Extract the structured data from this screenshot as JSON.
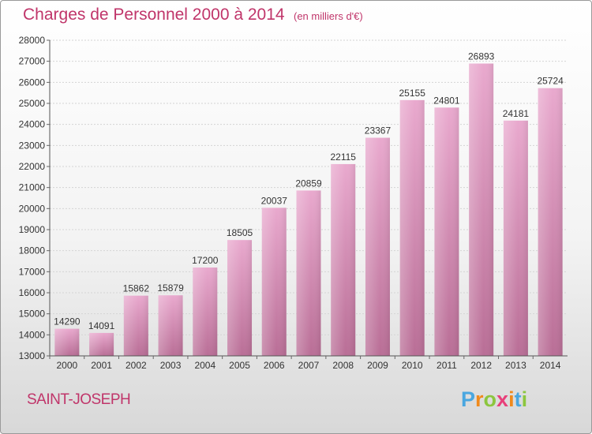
{
  "chart_data": {
    "type": "bar",
    "title": "Charges de Personnel 2000 à 2014",
    "subtitle": "(en milliers d'€)",
    "categories": [
      "2000",
      "2001",
      "2002",
      "2003",
      "2004",
      "2005",
      "2006",
      "2007",
      "2008",
      "2009",
      "2010",
      "2011",
      "2012",
      "2013",
      "2014"
    ],
    "values": [
      14290,
      14091,
      15862,
      15879,
      17200,
      18505,
      20037,
      20859,
      22115,
      23367,
      25155,
      24801,
      26893,
      24181,
      25724
    ],
    "ylim": [
      13000,
      28000
    ],
    "yticks": [
      13000,
      14000,
      15000,
      16000,
      17000,
      18000,
      19000,
      20000,
      21000,
      22000,
      23000,
      24000,
      25000,
      26000,
      27000,
      28000
    ],
    "grid": true,
    "bar_color": "#c86a9a",
    "title_color": "#c0356a"
  },
  "footer": {
    "city": "SAINT-JOSEPH",
    "logo": "Proxiti",
    "logo_colors": [
      "#4aa7e0",
      "#f08a1c",
      "#8cc63e",
      "#e8407a",
      "#f08a1c",
      "#4aa7e0",
      "#8cc63e"
    ]
  }
}
